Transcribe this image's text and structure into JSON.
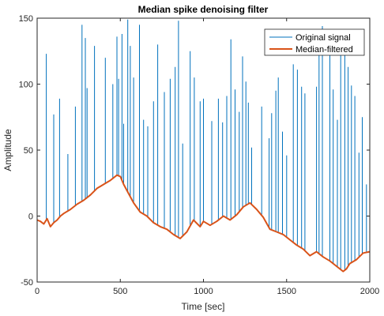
{
  "chart_data": {
    "type": "line",
    "title": "Median spike denoising filter",
    "xlabel": "Time [sec]",
    "ylabel": "Amplitude",
    "xlim": [
      0,
      2000
    ],
    "ylim": [
      -50,
      150
    ],
    "xticks": [
      0,
      500,
      1000,
      1500,
      2000
    ],
    "yticks": [
      -50,
      0,
      50,
      100,
      150
    ],
    "grid": false,
    "legend_position": "top-right",
    "series": [
      {
        "name": "Original signal",
        "color": "#0072BD",
        "style": "baseline plus sparse impulse spikes",
        "baseline_points": [
          [
            0,
            -3
          ],
          [
            20,
            -4
          ],
          [
            40,
            -6
          ],
          [
            60,
            -2
          ],
          [
            80,
            -8
          ],
          [
            100,
            -5
          ],
          [
            120,
            -3
          ],
          [
            140,
            0
          ],
          [
            160,
            2
          ],
          [
            200,
            5
          ],
          [
            240,
            9
          ],
          [
            280,
            12
          ],
          [
            320,
            16
          ],
          [
            360,
            21
          ],
          [
            400,
            24
          ],
          [
            440,
            27
          ],
          [
            480,
            31
          ],
          [
            500,
            30
          ],
          [
            520,
            24
          ],
          [
            550,
            17
          ],
          [
            580,
            10
          ],
          [
            620,
            3
          ],
          [
            660,
            0
          ],
          [
            700,
            -5
          ],
          [
            740,
            -8
          ],
          [
            780,
            -10
          ],
          [
            820,
            -14
          ],
          [
            860,
            -17
          ],
          [
            900,
            -12
          ],
          [
            940,
            -3
          ],
          [
            980,
            -8
          ],
          [
            1000,
            -4
          ],
          [
            1040,
            -7
          ],
          [
            1080,
            -4
          ],
          [
            1120,
            0
          ],
          [
            1160,
            -3
          ],
          [
            1200,
            1
          ],
          [
            1240,
            7
          ],
          [
            1280,
            10
          ],
          [
            1320,
            5
          ],
          [
            1360,
            -1
          ],
          [
            1400,
            -10
          ],
          [
            1440,
            -12
          ],
          [
            1480,
            -14
          ],
          [
            1520,
            -18
          ],
          [
            1560,
            -22
          ],
          [
            1600,
            -25
          ],
          [
            1640,
            -30
          ],
          [
            1680,
            -27
          ],
          [
            1720,
            -31
          ],
          [
            1760,
            -34
          ],
          [
            1800,
            -38
          ],
          [
            1840,
            -42
          ],
          [
            1860,
            -40
          ],
          [
            1880,
            -36
          ],
          [
            1920,
            -33
          ],
          [
            1960,
            -28
          ],
          [
            2000,
            -27
          ]
        ],
        "spikes": [
          [
            55,
            123
          ],
          [
            100,
            77
          ],
          [
            135,
            89
          ],
          [
            185,
            47
          ],
          [
            230,
            83
          ],
          [
            270,
            145
          ],
          [
            290,
            135
          ],
          [
            300,
            97
          ],
          [
            345,
            129
          ],
          [
            410,
            120
          ],
          [
            455,
            100
          ],
          [
            480,
            136
          ],
          [
            490,
            104
          ],
          [
            510,
            138
          ],
          [
            520,
            70
          ],
          [
            545,
            149
          ],
          [
            560,
            129
          ],
          [
            580,
            105
          ],
          [
            615,
            145
          ],
          [
            640,
            73
          ],
          [
            665,
            68
          ],
          [
            700,
            87
          ],
          [
            725,
            130
          ],
          [
            765,
            94
          ],
          [
            800,
            104
          ],
          [
            830,
            113
          ],
          [
            850,
            148
          ],
          [
            875,
            55
          ],
          [
            920,
            125
          ],
          [
            945,
            105
          ],
          [
            980,
            87
          ],
          [
            1000,
            89
          ],
          [
            1050,
            72
          ],
          [
            1090,
            89
          ],
          [
            1115,
            71
          ],
          [
            1140,
            91
          ],
          [
            1165,
            134
          ],
          [
            1190,
            96
          ],
          [
            1215,
            79
          ],
          [
            1235,
            121
          ],
          [
            1255,
            102
          ],
          [
            1270,
            86
          ],
          [
            1290,
            52
          ],
          [
            1350,
            83
          ],
          [
            1395,
            59
          ],
          [
            1410,
            78
          ],
          [
            1435,
            95
          ],
          [
            1450,
            105
          ],
          [
            1475,
            64
          ],
          [
            1500,
            46
          ],
          [
            1540,
            115
          ],
          [
            1565,
            111
          ],
          [
            1590,
            98
          ],
          [
            1610,
            93
          ],
          [
            1680,
            98
          ],
          [
            1695,
            129
          ],
          [
            1715,
            144
          ],
          [
            1760,
            139
          ],
          [
            1780,
            96
          ],
          [
            1805,
            73
          ],
          [
            1825,
            129
          ],
          [
            1850,
            124
          ],
          [
            1870,
            113
          ],
          [
            1890,
            99
          ],
          [
            1910,
            91
          ],
          [
            1935,
            48
          ],
          [
            1955,
            75
          ],
          [
            1980,
            24
          ]
        ]
      },
      {
        "name": "Median-filtered",
        "color": "#D95319",
        "points": [
          [
            0,
            -3
          ],
          [
            20,
            -4
          ],
          [
            40,
            -6
          ],
          [
            60,
            -2
          ],
          [
            80,
            -8
          ],
          [
            100,
            -5
          ],
          [
            120,
            -3
          ],
          [
            140,
            0
          ],
          [
            160,
            2
          ],
          [
            200,
            5
          ],
          [
            240,
            9
          ],
          [
            280,
            12
          ],
          [
            320,
            16
          ],
          [
            360,
            21
          ],
          [
            400,
            24
          ],
          [
            440,
            27
          ],
          [
            480,
            31
          ],
          [
            500,
            30
          ],
          [
            520,
            24
          ],
          [
            550,
            17
          ],
          [
            580,
            10
          ],
          [
            620,
            3
          ],
          [
            660,
            0
          ],
          [
            700,
            -5
          ],
          [
            740,
            -8
          ],
          [
            780,
            -10
          ],
          [
            820,
            -14
          ],
          [
            860,
            -17
          ],
          [
            900,
            -12
          ],
          [
            940,
            -3
          ],
          [
            980,
            -8
          ],
          [
            1000,
            -4
          ],
          [
            1040,
            -7
          ],
          [
            1080,
            -4
          ],
          [
            1120,
            0
          ],
          [
            1160,
            -3
          ],
          [
            1200,
            1
          ],
          [
            1240,
            7
          ],
          [
            1280,
            10
          ],
          [
            1320,
            5
          ],
          [
            1360,
            -1
          ],
          [
            1400,
            -10
          ],
          [
            1440,
            -12
          ],
          [
            1480,
            -14
          ],
          [
            1520,
            -18
          ],
          [
            1560,
            -22
          ],
          [
            1600,
            -25
          ],
          [
            1640,
            -30
          ],
          [
            1680,
            -27
          ],
          [
            1720,
            -31
          ],
          [
            1760,
            -34
          ],
          [
            1800,
            -38
          ],
          [
            1840,
            -42
          ],
          [
            1860,
            -40
          ],
          [
            1880,
            -36
          ],
          [
            1920,
            -33
          ],
          [
            1960,
            -28
          ],
          [
            2000,
            -27
          ]
        ]
      }
    ]
  }
}
